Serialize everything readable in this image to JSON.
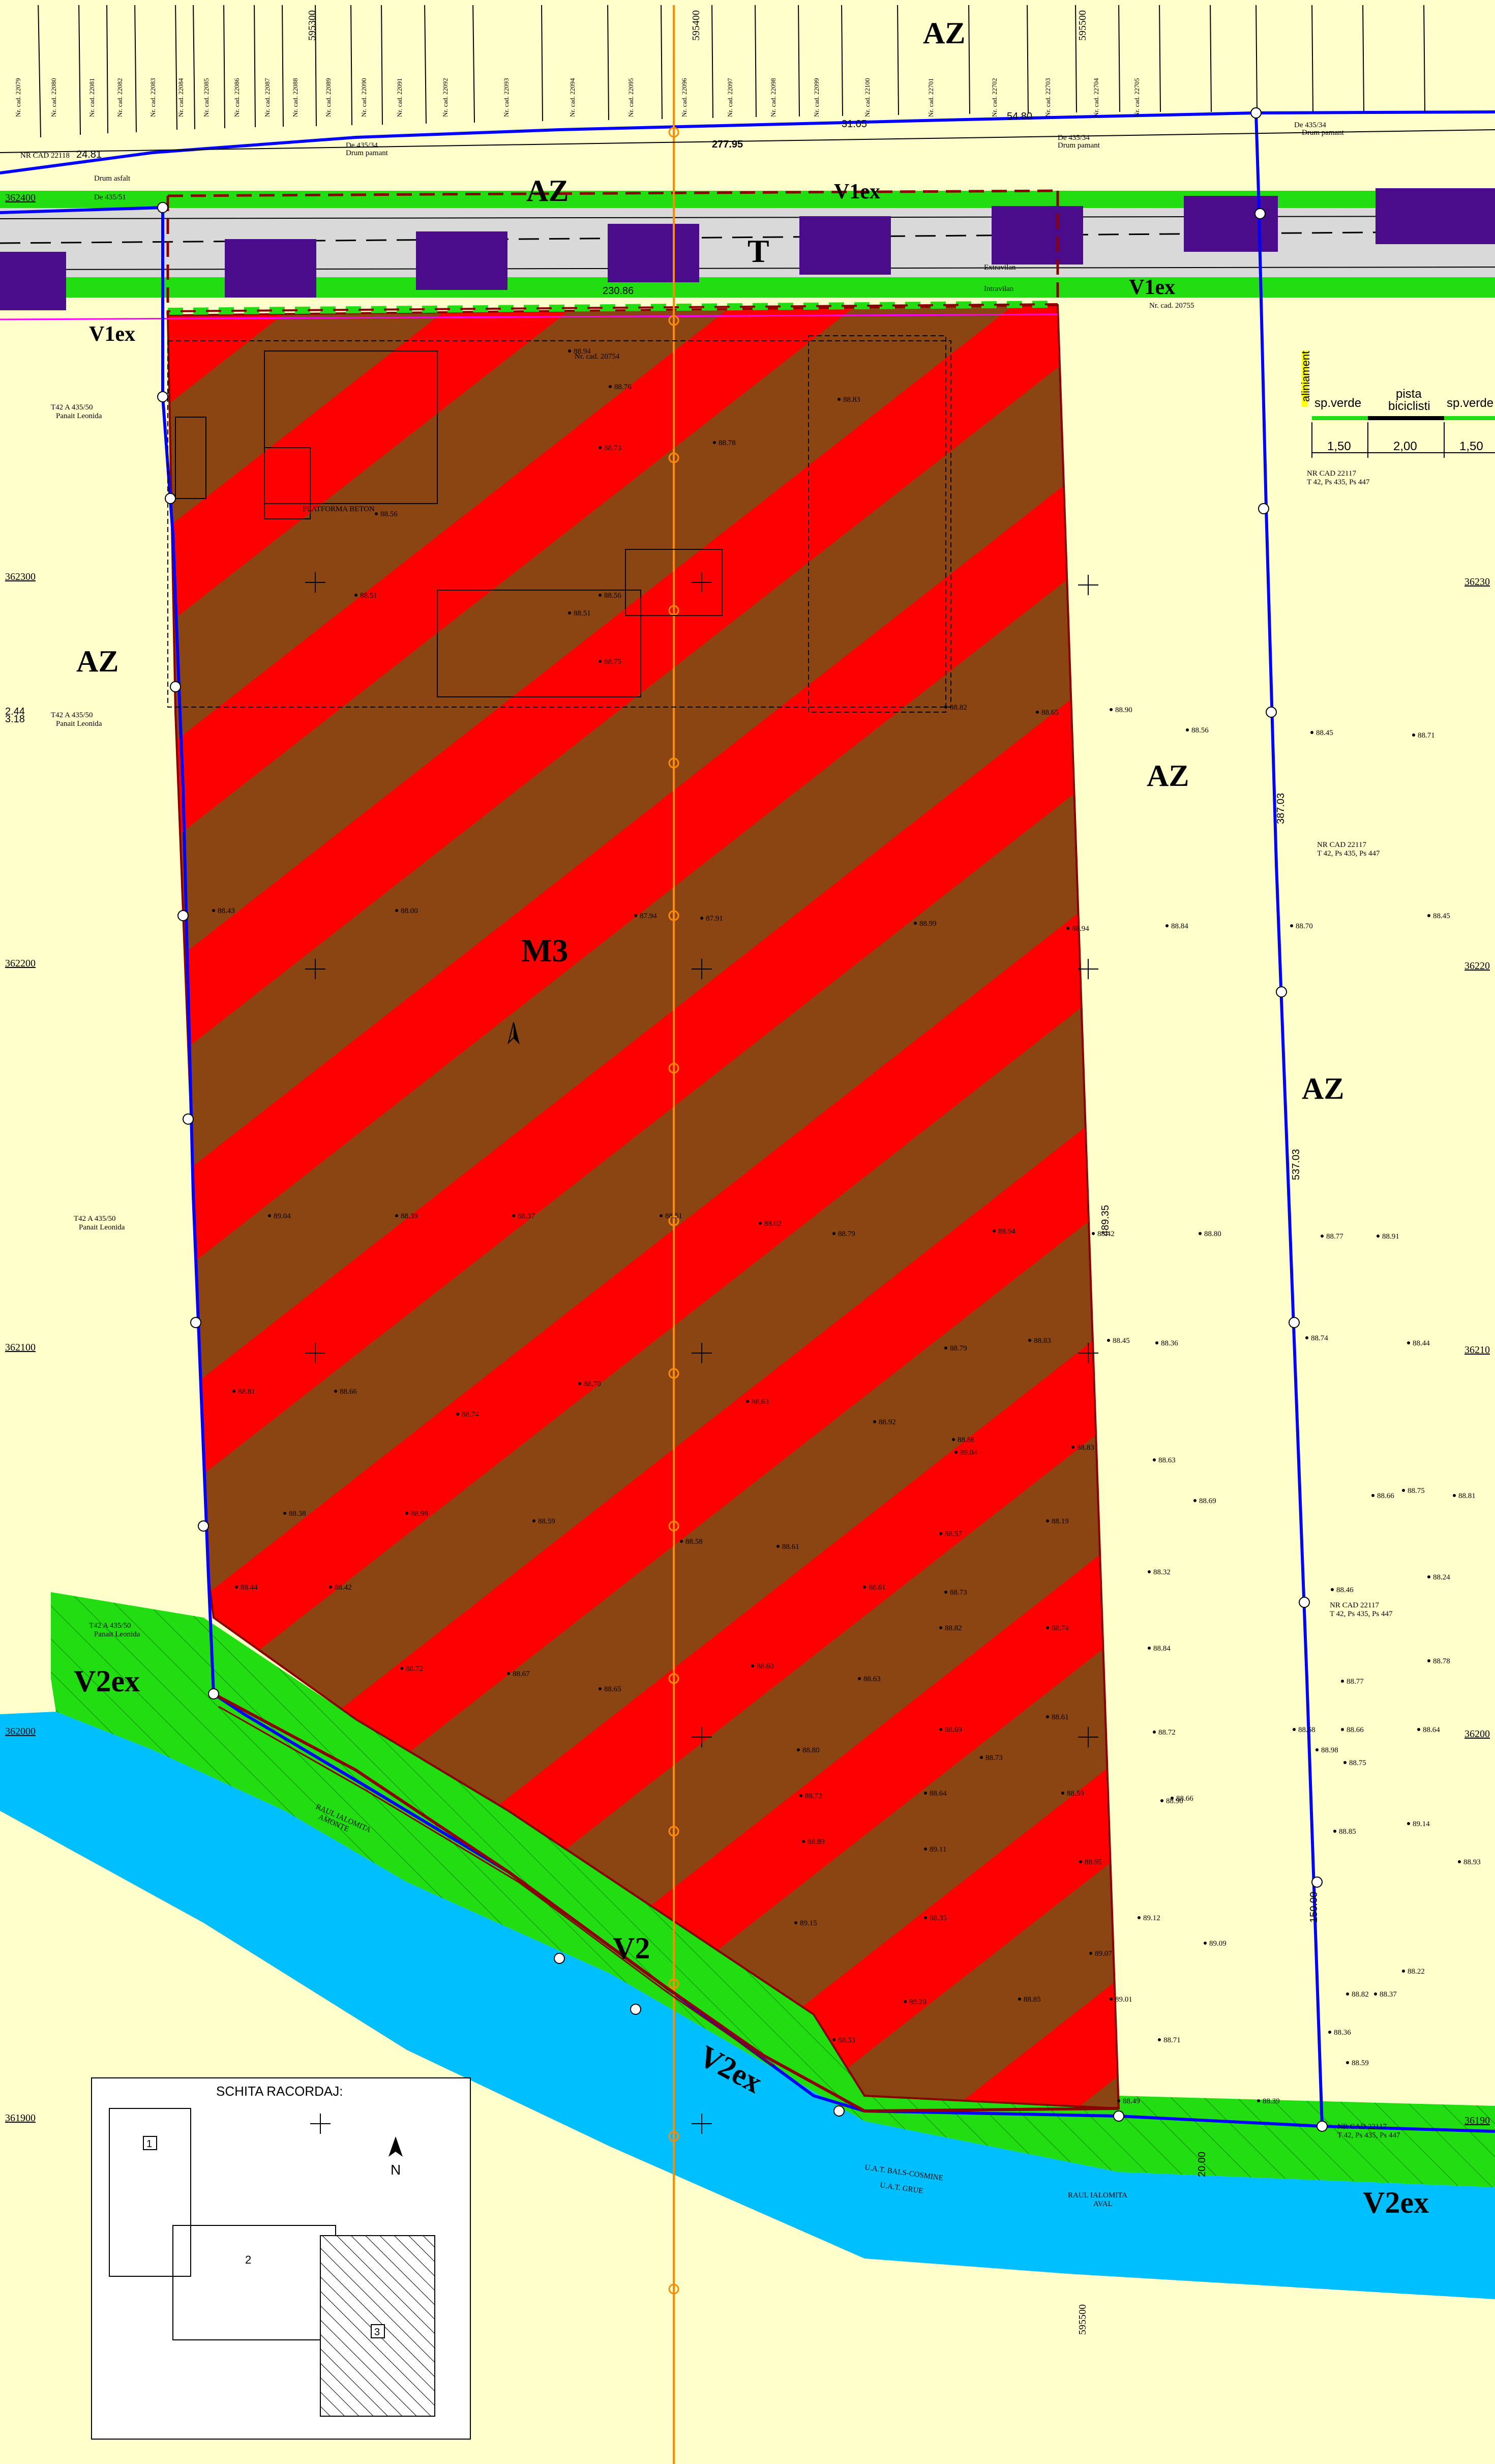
{
  "zones": {
    "az_top": "AZ",
    "az_top2": "AZ",
    "t_road": "T",
    "v1ex_top_right": "V1ex",
    "v1ex_top_left": "V1ex",
    "v1ex_bottom_right": "V1ex",
    "az_left": "AZ",
    "az_right1": "AZ",
    "az_right2": "AZ",
    "m3": "M3",
    "v2ex_left": "V2ex",
    "v2": "V2",
    "v2ex_mid": "V2ex",
    "v2ex_right": "V2ex"
  },
  "grid_labels": {
    "n362400": "362400",
    "n362300": "362300",
    "n362200": "362200",
    "n362100": "362100",
    "n362000": "362000",
    "n361900": "361900",
    "e595400": "595400",
    "e595500": "595500",
    "e595300": "595300",
    "e595500b": "595500",
    "right_362300": "36230",
    "right_362200": "36220",
    "right_362100": "36210",
    "right_362000": "36200",
    "right_361900": "36190"
  },
  "parcel_labels": {
    "cad_top": [
      "Nr. cad. 22079",
      "Nr. cad. 22080",
      "Nr. cad. 22081",
      "Nr. cad. 22082",
      "Nr. cad. 22083",
      "Nr. cad. 22084",
      "Nr. cad. 22085",
      "Nr. cad. 22086",
      "Nr. cad. 22087",
      "Nr. cad. 22088",
      "Nr. cad. 22089",
      "Nr. cad. 22090",
      "Nr. cad. 22091",
      "Nr. cad. 22092",
      "Nr. cad. 22093",
      "Nr. cad. 22094",
      "Nr. cad. 22095",
      "Nr. cad. 22096",
      "Nr. cad. 22097",
      "Nr. cad. 22098",
      "Nr. cad. 22099",
      "Nr. cad. 22100",
      "Nr. cad. 22701",
      "Nr. cad. 22702",
      "Nr. cad. 22703",
      "Nr. cad. 22704",
      "Nr. cad. 22705"
    ],
    "nrcad_22118": "NR CAD 22118",
    "drum_asfalt": "Drum asfalt",
    "de_435_51": "De 435/51",
    "de_435_34_a": "De 435/34",
    "drum_pamant_a": "Drum pamant",
    "de_435_34_b": "De 435/34",
    "drum_pamant_b": "Drum pamant",
    "de_435_34_c": "De 435/34",
    "drum_pamant_c": "Drum pamant",
    "t42_a": "T42 A 435/50",
    "panait_a": "Panait Leonida",
    "t42_b": "T42 A 435/50",
    "panait_b": "Panait Leonida",
    "t42_c": "T42 A 435/50",
    "panait_c": "Panait Leonida",
    "t42_d": "T42 A 435/50",
    "panait_d": "Panait Leonida",
    "nrcad_22117_a": "NR CAD 22117",
    "t42_ps_a": "T 42, Ps 435, Ps 447",
    "nrcad_22117_b": "NR CAD 22117",
    "t42_ps_b": "T 42, Ps 435, Ps 447",
    "nrcad_22117_c": "NR CAD 22117",
    "t42_ps_c": "T 42, Ps 435, Ps 447",
    "nrcad_22117_d": "NR CAD 22117",
    "t42_ps_d": "T 42, Ps 435, Ps 447",
    "cad_20755": "Nr. cad. 20755",
    "cad_20754": "Nr. cad. 20754",
    "extravilan": "Extravilan",
    "intravilan": "Intravilan",
    "platforma_beton": "PLATFORMA BETON",
    "raul_ialomita_amonte": "RAUL IALOMITA",
    "amonte": "AMONTE",
    "raul_ialomita_aval": "RAUL IALOMITA",
    "aval": "AVAL",
    "uat_balaciu": "U.A.T. BALS-COSMINE",
    "uat_grue": "U.A.T. GRUE"
  },
  "dimensions": {
    "d_277_95": "277.95",
    "d_24_81": "24.81",
    "d_31_05": "31.05",
    "d_54_80": "54.80",
    "d_2_44": "2.44",
    "d_3_18": "3.18",
    "d_230_86": "230.86",
    "d_20_00": "20.00",
    "d_489_35": "489.35",
    "d_387_03": "387.03",
    "d_537_03": "537.03",
    "d_150_00": "150.00"
  },
  "profile": {
    "alignment": "aliniament",
    "col1": "sp.verde",
    "col2": "pista biciclisti",
    "col3": "sp.verde",
    "w1": "1,50",
    "w2": "2,00",
    "w3": "1,50"
  },
  "inset": {
    "title": "SCHITA RACORDAJ:",
    "box1": "1",
    "box2": "2",
    "box3": "3",
    "north": "N"
  },
  "elevations": [
    "88.94",
    "88.76",
    "88.73",
    "88.83",
    "88.78",
    "88.51",
    "88.90",
    "88.56",
    "88.45",
    "88.71",
    "88.84",
    "88.70",
    "88.45",
    "88.56",
    "88.51",
    "88.56",
    "88.75",
    "88.82",
    "88.65",
    "88.43",
    "88.00",
    "87.94",
    "87.91",
    "88.99",
    "88.94",
    "89.04",
    "88.39",
    "88.37",
    "88.51",
    "88.02",
    "88.79",
    "88.94",
    "88.42",
    "88.80",
    "88.77",
    "88.91",
    "88.74",
    "88.44",
    "88.36",
    "88.45",
    "88.83",
    "88.79",
    "88.81",
    "88.66",
    "88.74",
    "88.70",
    "88.63",
    "88.92",
    "88.86",
    "89.04",
    "88.83",
    "88.63",
    "88.69",
    "88.75",
    "88.66",
    "88.81",
    "88.38",
    "88.98",
    "88.59",
    "88.58",
    "88.61",
    "88.57",
    "88.19",
    "88.32",
    "88.46",
    "88.24",
    "88.44",
    "88.42",
    "88.61",
    "88.73",
    "88.82",
    "88.74",
    "88.84",
    "88.77",
    "88.78",
    "88.72",
    "88.67",
    "88.65",
    "88.60",
    "88.63",
    "88.69",
    "88.61",
    "88.72",
    "88.68",
    "88.66",
    "88.64",
    "88.80",
    "88.73",
    "88.66",
    "88.75",
    "88.73",
    "88.64",
    "88.59",
    "88.98",
    "88.90",
    "88.89",
    "89.11",
    "88.95",
    "88.85",
    "89.14",
    "88.93",
    "89.15",
    "88.35",
    "89.07",
    "89.12",
    "89.09",
    "89.20",
    "88.85",
    "89.01",
    "88.82",
    "88.36",
    "88.71",
    "88.49",
    "88.39",
    "88.59",
    "88.22",
    "88.37",
    "88.33"
  ]
}
